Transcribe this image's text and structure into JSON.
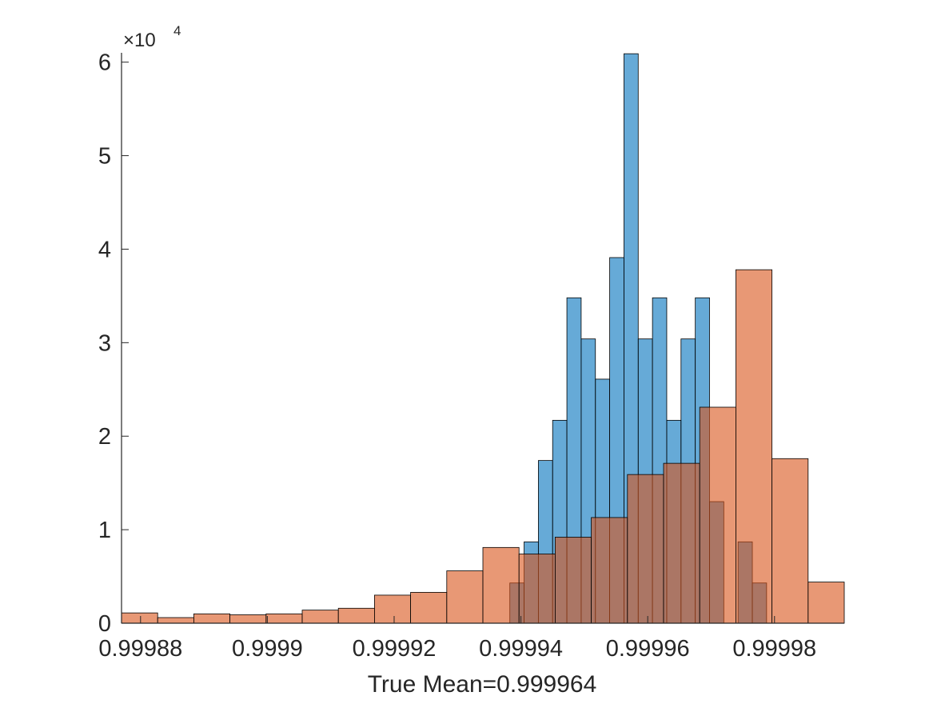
{
  "chart_data": {
    "type": "bar",
    "title": "",
    "xlabel": "True Mean=0.999964",
    "ylabel": "",
    "y_exponent_base": "×10",
    "y_exponent_power": "4",
    "xlim": [
      0.999877,
      0.999991
    ],
    "ylim": [
      0,
      61000
    ],
    "xticks": [
      0.99988,
      0.9999,
      0.99992,
      0.99994,
      0.99996,
      0.99998
    ],
    "xtick_labels": [
      "0.99988",
      "0.9999",
      "0.99992",
      "0.99994",
      "0.99996",
      "0.99998"
    ],
    "yticks": [
      0,
      10000,
      20000,
      30000,
      40000,
      50000,
      60000
    ],
    "ytick_labels": [
      "0",
      "1",
      "2",
      "3",
      "4",
      "5",
      "6"
    ],
    "grid": false,
    "series": [
      {
        "color": "#0072BD",
        "opacity": 0.6,
        "bin_edges": [
          0.99993825,
          0.9999405,
          0.99994275,
          0.999945,
          0.99994725,
          0.9999495,
          0.99995175,
          0.999954,
          0.99995625,
          0.9999585,
          0.99996075,
          0.999963,
          0.99996525,
          0.9999675,
          0.99996975,
          0.999972,
          0.99997425,
          0.9999765,
          0.99997875,
          0.999981
        ],
        "values": [
          4300,
          8700,
          17400,
          21700,
          34800,
          30400,
          26100,
          39100,
          60900,
          30400,
          34800,
          21700,
          30400,
          34800,
          13000,
          0,
          8700,
          4300,
          0
        ]
      },
      {
        "color": "#D95319",
        "opacity": 0.6,
        "bin_edges": [
          0.999877,
          0.9998827,
          0.9998884,
          0.9998941,
          0.9998998,
          0.9999055,
          0.9999112,
          0.9999169,
          0.9999226,
          0.9999283,
          0.999934,
          0.9999397,
          0.9999454,
          0.9999511,
          0.9999568,
          0.9999625,
          0.9999682,
          0.9999739,
          0.9999796,
          0.9999853,
          0.999991
        ],
        "values": [
          1100,
          600,
          1000,
          900,
          1000,
          1400,
          1600,
          3000,
          3300,
          5600,
          8100,
          7400,
          9200,
          11300,
          15900,
          17100,
          23100,
          37800,
          17600,
          4400
        ]
      }
    ]
  }
}
